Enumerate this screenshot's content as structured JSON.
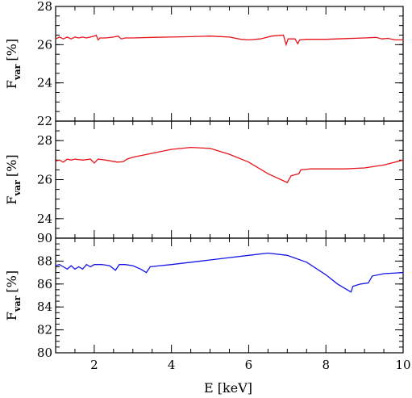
{
  "chart_data": {
    "type": "line",
    "shared_x": {
      "label": "E [keV]",
      "xlim": [
        1,
        10
      ],
      "major_ticks": [
        2,
        4,
        6,
        8,
        10
      ],
      "minor_step": 0.5
    },
    "panels": [
      {
        "ylabel_main": "F",
        "ylabel_sub": "var",
        "ylabel_unit": "[%]",
        "ylim": [
          22,
          28
        ],
        "major_ticks": [
          22,
          24,
          26,
          28
        ],
        "minor_step": 0.5,
        "series": [
          {
            "color": "#e8141b",
            "points": [
              [
                1.0,
                26.3
              ],
              [
                1.1,
                26.4
              ],
              [
                1.2,
                26.3
              ],
              [
                1.3,
                26.4
              ],
              [
                1.4,
                26.3
              ],
              [
                1.5,
                26.4
              ],
              [
                1.6,
                26.35
              ],
              [
                1.7,
                26.4
              ],
              [
                1.8,
                26.35
              ],
              [
                1.9,
                26.4
              ],
              [
                2.0,
                26.45
              ],
              [
                2.05,
                26.5
              ],
              [
                2.1,
                26.25
              ],
              [
                2.15,
                26.35
              ],
              [
                2.3,
                26.35
              ],
              [
                2.5,
                26.4
              ],
              [
                2.62,
                26.45
              ],
              [
                2.7,
                26.3
              ],
              [
                2.8,
                26.35
              ],
              [
                3.0,
                26.35
              ],
              [
                3.5,
                26.38
              ],
              [
                4.0,
                26.4
              ],
              [
                4.5,
                26.42
              ],
              [
                5.0,
                26.45
              ],
              [
                5.5,
                26.4
              ],
              [
                5.8,
                26.28
              ],
              [
                6.0,
                26.25
              ],
              [
                6.3,
                26.3
              ],
              [
                6.6,
                26.45
              ],
              [
                6.9,
                26.5
              ],
              [
                6.97,
                26.0
              ],
              [
                7.02,
                26.3
              ],
              [
                7.2,
                26.3
              ],
              [
                7.27,
                26.05
              ],
              [
                7.32,
                26.25
              ],
              [
                7.5,
                26.28
              ],
              [
                8.0,
                26.28
              ],
              [
                8.5,
                26.32
              ],
              [
                9.0,
                26.35
              ],
              [
                9.3,
                26.38
              ],
              [
                9.45,
                26.3
              ],
              [
                9.6,
                26.33
              ],
              [
                9.8,
                26.25
              ],
              [
                10.0,
                26.25
              ]
            ]
          }
        ]
      },
      {
        "ylabel_main": "F",
        "ylabel_sub": "var",
        "ylabel_unit": "[%]",
        "ylim": [
          23,
          29
        ],
        "major_ticks": [
          24,
          26,
          28
        ],
        "minor_step": 0.5,
        "series": [
          {
            "color": "#e8141b",
            "points": [
              [
                1.0,
                26.95
              ],
              [
                1.1,
                27.0
              ],
              [
                1.2,
                26.9
              ],
              [
                1.3,
                27.05
              ],
              [
                1.4,
                27.0
              ],
              [
                1.5,
                27.05
              ],
              [
                1.7,
                27.0
              ],
              [
                1.9,
                27.05
              ],
              [
                2.0,
                26.85
              ],
              [
                2.1,
                27.05
              ],
              [
                2.3,
                27.0
              ],
              [
                2.6,
                26.9
              ],
              [
                2.75,
                26.92
              ],
              [
                2.85,
                27.05
              ],
              [
                3.0,
                27.15
              ],
              [
                3.5,
                27.35
              ],
              [
                4.0,
                27.55
              ],
              [
                4.5,
                27.65
              ],
              [
                5.0,
                27.6
              ],
              [
                5.5,
                27.3
              ],
              [
                6.0,
                26.9
              ],
              [
                6.5,
                26.3
              ],
              [
                7.0,
                25.85
              ],
              [
                7.1,
                26.2
              ],
              [
                7.3,
                26.3
              ],
              [
                7.35,
                26.5
              ],
              [
                7.6,
                26.55
              ],
              [
                8.0,
                26.55
              ],
              [
                8.5,
                26.55
              ],
              [
                9.0,
                26.6
              ],
              [
                9.5,
                26.75
              ],
              [
                10.0,
                27.0
              ]
            ]
          }
        ]
      },
      {
        "ylabel_main": "F",
        "ylabel_sub": "var",
        "ylabel_unit": "[%]",
        "ylim": [
          80,
          90
        ],
        "major_ticks": [
          80,
          82,
          84,
          86,
          88,
          90
        ],
        "minor_step": 0.5,
        "series": [
          {
            "color": "#1414e8",
            "points": [
              [
                1.0,
                87.6
              ],
              [
                1.1,
                87.7
              ],
              [
                1.2,
                87.5
              ],
              [
                1.3,
                87.3
              ],
              [
                1.4,
                87.6
              ],
              [
                1.5,
                87.3
              ],
              [
                1.6,
                87.5
              ],
              [
                1.7,
                87.3
              ],
              [
                1.8,
                87.7
              ],
              [
                1.9,
                87.5
              ],
              [
                2.0,
                87.7
              ],
              [
                2.2,
                87.7
              ],
              [
                2.4,
                87.6
              ],
              [
                2.55,
                87.2
              ],
              [
                2.65,
                87.7
              ],
              [
                2.8,
                87.7
              ],
              [
                3.0,
                87.6
              ],
              [
                3.2,
                87.3
              ],
              [
                3.35,
                87.0
              ],
              [
                3.45,
                87.5
              ],
              [
                3.7,
                87.6
              ],
              [
                4.0,
                87.7
              ],
              [
                5.0,
                88.1
              ],
              [
                5.5,
                88.3
              ],
              [
                6.0,
                88.5
              ],
              [
                6.5,
                88.7
              ],
              [
                7.0,
                88.5
              ],
              [
                7.5,
                87.9
              ],
              [
                8.0,
                86.8
              ],
              [
                8.3,
                86.0
              ],
              [
                8.55,
                85.5
              ],
              [
                8.65,
                85.3
              ],
              [
                8.7,
                85.8
              ],
              [
                8.9,
                86.0
              ],
              [
                9.1,
                86.1
              ],
              [
                9.2,
                86.7
              ],
              [
                9.5,
                86.9
              ],
              [
                10.0,
                87.0
              ]
            ]
          }
        ]
      }
    ]
  }
}
